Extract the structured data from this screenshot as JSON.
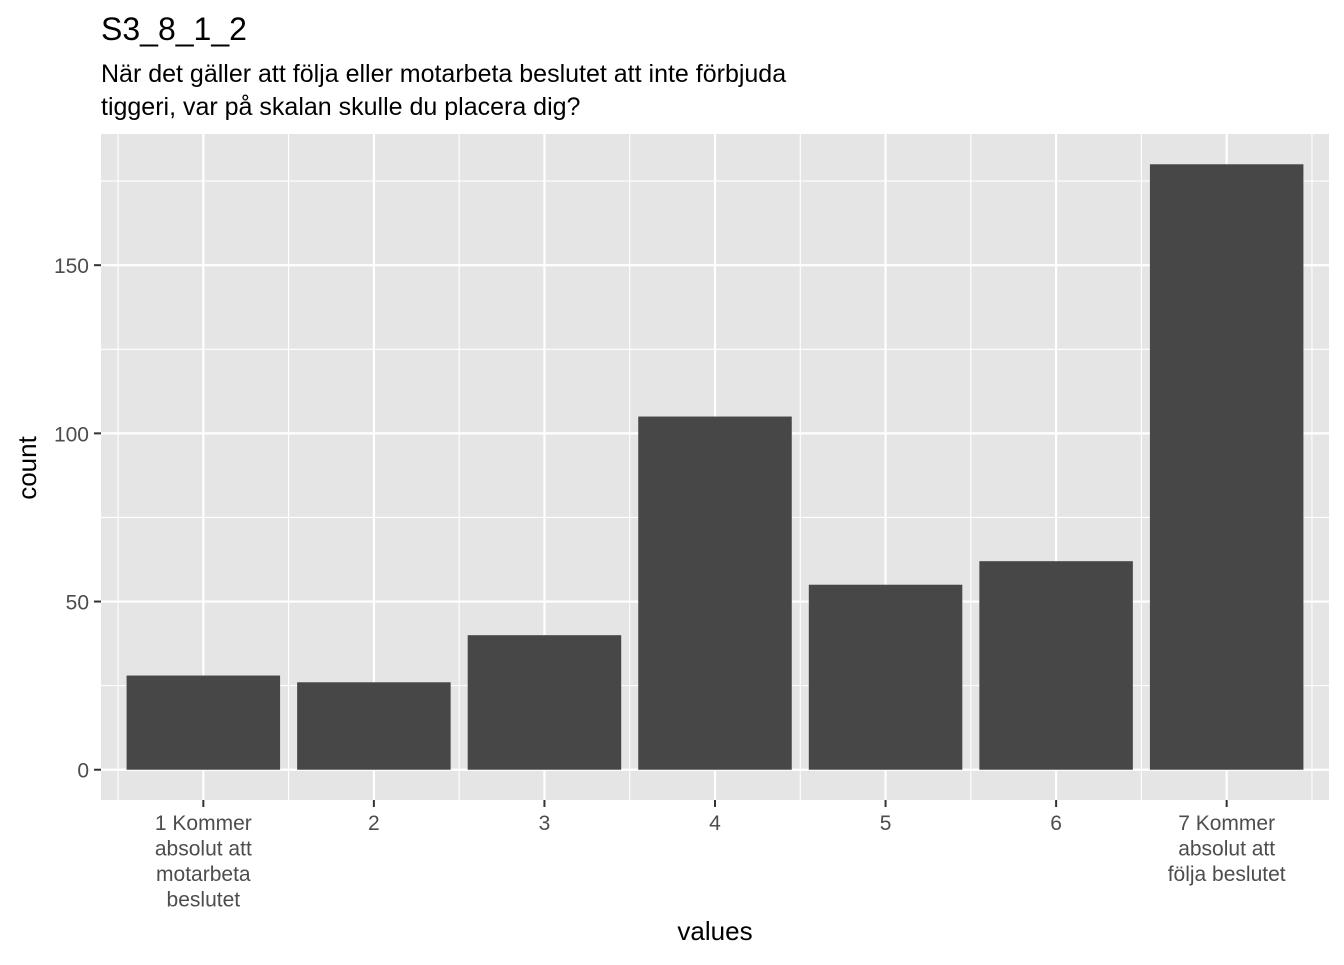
{
  "chart_data": {
    "type": "bar",
    "title": "S3_8_1_2",
    "subtitle": [
      "När det gäller att följa eller motarbeta beslutet att inte förbjuda",
      "tiggeri, var på skalan skulle du placera dig?"
    ],
    "xlabel": "values",
    "ylabel": "count",
    "categories": [
      [
        "1 Kommer",
        "absolut att",
        "motarbeta",
        "beslutet"
      ],
      [
        "2"
      ],
      [
        "3"
      ],
      [
        "4"
      ],
      [
        "5"
      ],
      [
        "6"
      ],
      [
        "7 Kommer",
        "absolut att",
        "följa beslutet"
      ]
    ],
    "values": [
      28,
      26,
      40,
      105,
      55,
      62,
      180
    ],
    "ylim": [
      -9,
      189
    ],
    "yticks": [
      0,
      50,
      100,
      150
    ],
    "grid": true,
    "colors": {
      "panel": "#e5e5e5",
      "gridline": "#ffffff",
      "bar": "#474747",
      "tick_text": "#4d4d4d",
      "axis_title": "#000000",
      "tick_mark": "#333333"
    }
  }
}
